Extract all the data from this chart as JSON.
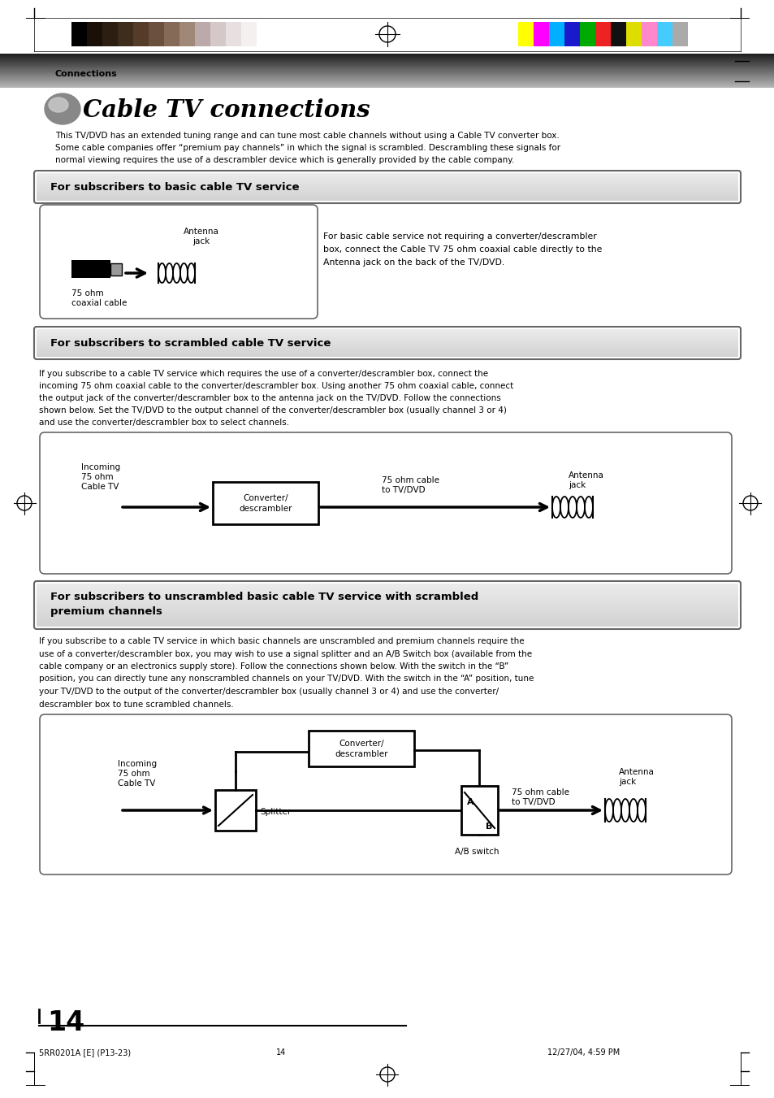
{
  "page_bg": "#ffffff",
  "title_text": "Cable TV connections",
  "header_label": "Connections",
  "page_number": "14",
  "footer_left": "5RR0201A [E] (P13-23)",
  "footer_center": "14",
  "footer_right": "12/27/04, 4:59 PM",
  "color_swatches_left": [
    "#000000",
    "#1a1008",
    "#2d1e12",
    "#3e2c1c",
    "#543c28",
    "#6b5040",
    "#856a58",
    "#a08878",
    "#bcaaaa",
    "#d4c8c8",
    "#e8e0e0",
    "#f5f0f0"
  ],
  "color_swatches_right": [
    "#ffff00",
    "#ff00ff",
    "#00b0ff",
    "#1a1acc",
    "#00aa00",
    "#ee2222",
    "#111111",
    "#dddd00",
    "#ff88cc",
    "#44ccff",
    "#aaaaaa"
  ],
  "section1_title": "For subscribers to basic cable TV service",
  "section2_title": "For subscribers to scrambled cable TV service",
  "section3_title": "For subscribers to unscrambled basic cable TV service with scrambled\npremium channels",
  "intro_text": "This TV/DVD has an extended tuning range and can tune most cable channels without using a Cable TV converter box.\nSome cable companies offer “premium pay channels” in which the signal is scrambled. Descrambling these signals for\nnormal viewing requires the use of a descrambler device which is generally provided by the cable company.",
  "section1_desc": "For basic cable service not requiring a converter/descrambler\nbox, connect the Cable TV 75 ohm coaxial cable directly to the\nAntenna jack on the back of the TV/DVD.",
  "section2_desc": "If you subscribe to a cable TV service which requires the use of a converter/descrambler box, connect the\nincoming 75 ohm coaxial cable to the converter/descrambler box. Using another 75 ohm coaxial cable, connect\nthe output jack of the converter/descrambler box to the antenna jack on the TV/DVD. Follow the connections\nshown below. Set the TV/DVD to the output channel of the converter/descrambler box (usually channel 3 or 4)\nand use the converter/descrambler box to select channels.",
  "section3_desc": "If you subscribe to a cable TV service in which basic channels are unscrambled and premium channels require the\nuse of a converter/descrambler box, you may wish to use a signal splitter and an A/B Switch box (available from the\ncable company or an electronics supply store). Follow the connections shown below. With the switch in the “B”\nposition, you can directly tune any nonscrambled channels on your TV/DVD. With the switch in the “A” position, tune\nyour TV/DVD to the output of the converter/descrambler box (usually channel 3 or 4) and use the converter/\ndescrambler box to tune scrambled channels."
}
